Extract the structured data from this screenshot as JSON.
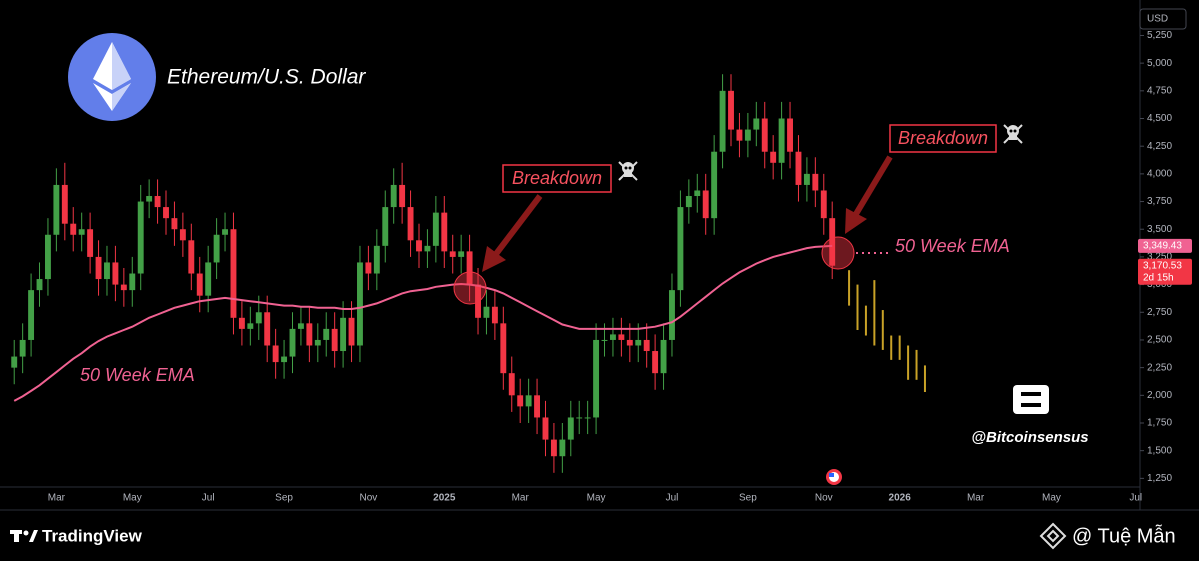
{
  "chart_data": {
    "type": "candlestick",
    "title": "Ethereum/U.S. Dollar",
    "currency": "USD",
    "up_color": "#43a047",
    "down_color": "#f23645",
    "categories": [
      null,
      null,
      null,
      null,
      null,
      "Mar",
      null,
      null,
      null,
      null,
      null,
      null,
      null,
      null,
      "May",
      null,
      null,
      null,
      null,
      null,
      null,
      null,
      null,
      "Jul",
      null,
      null,
      null,
      null,
      null,
      null,
      null,
      null,
      "Sep",
      null,
      null,
      null,
      null,
      null,
      null,
      null,
      null,
      null,
      "Nov",
      null,
      null,
      null,
      null,
      null,
      null,
      null,
      null,
      "2025",
      null,
      null,
      null,
      null,
      null,
      null,
      null,
      null,
      "Mar",
      null,
      null,
      null,
      null,
      null,
      null,
      null,
      null,
      "May",
      null,
      null,
      null,
      null,
      null,
      null,
      null,
      null,
      "Jul",
      null,
      null,
      null,
      null,
      null,
      null,
      null,
      null,
      "Sep",
      null,
      null,
      null,
      null,
      null,
      null,
      null,
      null,
      "Nov",
      null,
      null,
      null,
      null,
      null,
      null,
      null,
      null,
      "2026",
      null,
      null,
      null,
      null,
      null,
      null,
      null,
      null,
      "Mar",
      null,
      null,
      null,
      null,
      null,
      null,
      null,
      null,
      "May",
      null,
      null,
      null,
      null,
      null,
      null,
      null,
      null,
      null,
      "Jul"
    ],
    "open": [
      2250,
      2350,
      2500,
      2950,
      3050,
      3450,
      3900,
      3550,
      3450,
      3500,
      3250,
      3050,
      3200,
      3000,
      2950,
      3100,
      3750,
      3800,
      3700,
      3600,
      3500,
      3400,
      3100,
      2900,
      3200,
      3450,
      3500,
      2700,
      2600,
      2650,
      2750,
      2450,
      2300,
      2350,
      2600,
      2650,
      2450,
      2500,
      2600,
      2400,
      2700,
      2450,
      3200,
      3100,
      3350,
      3700,
      3900,
      3700,
      3400,
      3300,
      3350,
      3650,
      3300,
      3250,
      3300,
      3000,
      2700,
      2800,
      2650,
      2200,
      2000,
      1900,
      2000,
      1800,
      1600,
      1450,
      1600,
      1800,
      1800,
      1800,
      2500,
      2500,
      2550,
      2500,
      2450,
      2500,
      2400,
      2200,
      2500,
      2950,
      3700,
      3800,
      3850,
      3600,
      4200,
      4750,
      4400,
      4300,
      4400,
      4500,
      4200,
      4100,
      4500,
      4200,
      3900,
      4000,
      3850,
      3600,
      null,
      null,
      null,
      null,
      null,
      null,
      null,
      null,
      null,
      null,
      null,
      null,
      null,
      null,
      null,
      null,
      null,
      null,
      null,
      null,
      null,
      null,
      null,
      null,
      null,
      null,
      null,
      null,
      null,
      null,
      null,
      null,
      null,
      null,
      null,
      null
    ],
    "high": [
      2500,
      2650,
      3100,
      3200,
      3600,
      4050,
      4100,
      3700,
      3650,
      3650,
      3400,
      3350,
      3350,
      3150,
      3250,
      3900,
      3950,
      3950,
      3850,
      3750,
      3650,
      3550,
      3250,
      3350,
      3600,
      3650,
      3650,
      2850,
      2800,
      2900,
      2900,
      2600,
      2500,
      2750,
      2800,
      2800,
      2650,
      2750,
      2750,
      2850,
      2850,
      3350,
      3350,
      3500,
      3850,
      4050,
      4100,
      3850,
      3550,
      3500,
      3800,
      3800,
      3450,
      3450,
      3450,
      3150,
      2950,
      2950,
      2800,
      2350,
      2150,
      2150,
      2150,
      1950,
      1750,
      1750,
      1950,
      1950,
      1950,
      2650,
      2650,
      2700,
      2700,
      2650,
      2650,
      2650,
      2550,
      2650,
      3100,
      3850,
      3950,
      4000,
      4000,
      4350,
      4900,
      4900,
      4550,
      4550,
      4650,
      4650,
      4350,
      4650,
      4650,
      4350,
      4150,
      4150,
      4000,
      3750,
      null,
      null,
      null,
      null,
      null,
      null,
      null,
      null,
      null,
      null,
      null,
      null,
      null,
      null,
      null,
      null,
      null,
      null,
      null,
      null,
      null,
      null,
      null,
      null,
      null,
      null,
      null,
      null,
      null,
      null,
      null,
      null,
      null,
      null,
      null,
      null
    ],
    "low": [
      2100,
      2200,
      2350,
      2800,
      2900,
      3300,
      3400,
      3300,
      3300,
      3100,
      2900,
      2900,
      2850,
      2800,
      2800,
      2950,
      3600,
      3550,
      3450,
      3350,
      3250,
      2950,
      2750,
      2750,
      3050,
      3300,
      2550,
      2450,
      2450,
      2500,
      2300,
      2150,
      2150,
      2200,
      2450,
      2300,
      2300,
      2350,
      2250,
      2250,
      2300,
      2300,
      2950,
      2950,
      3200,
      3550,
      3550,
      3250,
      3150,
      3150,
      3200,
      3150,
      3100,
      3100,
      2850,
      2550,
      2550,
      2500,
      2050,
      1850,
      1750,
      1750,
      1650,
      1450,
      1300,
      1300,
      1450,
      1650,
      1650,
      1650,
      2350,
      2350,
      2350,
      2300,
      2300,
      2250,
      2050,
      2050,
      2350,
      2800,
      3550,
      3650,
      3450,
      3450,
      4050,
      4250,
      4150,
      4150,
      4250,
      4050,
      3950,
      3950,
      4050,
      3750,
      3750,
      3700,
      3450,
      3050,
      null,
      null,
      null,
      null,
      null,
      null,
      null,
      null,
      null,
      null,
      null,
      null,
      null,
      null,
      null,
      null,
      null,
      null,
      null,
      null,
      null,
      null,
      null,
      null,
      null,
      null,
      null,
      null,
      null,
      null,
      null,
      null,
      null,
      null,
      null,
      null
    ],
    "close": [
      2350,
      2500,
      2950,
      3050,
      3450,
      3900,
      3550,
      3450,
      3500,
      3250,
      3050,
      3200,
      3000,
      2950,
      3100,
      3750,
      3800,
      3700,
      3600,
      3500,
      3400,
      3100,
      2900,
      3200,
      3450,
      3500,
      2700,
      2600,
      2650,
      2750,
      2450,
      2300,
      2350,
      2600,
      2650,
      2450,
      2500,
      2600,
      2400,
      2700,
      2450,
      3200,
      3100,
      3350,
      3700,
      3900,
      3700,
      3400,
      3300,
      3350,
      3650,
      3300,
      3250,
      3300,
      3000,
      2700,
      2800,
      2650,
      2200,
      2000,
      1900,
      2000,
      1800,
      1600,
      1450,
      1600,
      1800,
      1800,
      1800,
      2500,
      2500,
      2550,
      2500,
      2450,
      2500,
      2400,
      2200,
      2500,
      2950,
      3700,
      3800,
      3850,
      3600,
      4200,
      4750,
      4400,
      4300,
      4400,
      4500,
      4200,
      4100,
      4500,
      4200,
      3900,
      4000,
      3850,
      3600,
      3170.53,
      null,
      null,
      null,
      null,
      null,
      null,
      null,
      null,
      null,
      null,
      null,
      null,
      null,
      null,
      null,
      null,
      null,
      null,
      null,
      null,
      null,
      null,
      null,
      null,
      null,
      null,
      null,
      null,
      null,
      null,
      null,
      null,
      null,
      null,
      null,
      null
    ],
    "ema": {
      "color": "#f06292",
      "values": [
        1950,
        1990,
        2040,
        2090,
        2150,
        2210,
        2270,
        2330,
        2380,
        2440,
        2490,
        2530,
        2560,
        2590,
        2620,
        2660,
        2700,
        2730,
        2760,
        2790,
        2810,
        2830,
        2850,
        2860,
        2870,
        2880,
        2870,
        2860,
        2850,
        2840,
        2830,
        2820,
        2810,
        2810,
        2800,
        2800,
        2790,
        2790,
        2790,
        2780,
        2780,
        2790,
        2810,
        2830,
        2860,
        2890,
        2920,
        2940,
        2950,
        2960,
        2980,
        2990,
        3000,
        3005,
        3000,
        2990,
        2970,
        2950,
        2920,
        2880,
        2840,
        2800,
        2760,
        2720,
        2680,
        2640,
        2620,
        2600,
        2600,
        2600,
        2600,
        2600,
        2600,
        2600,
        2600,
        2610,
        2620,
        2640,
        2660,
        2710,
        2770,
        2830,
        2890,
        2950,
        3010,
        3060,
        3110,
        3150,
        3190,
        3220,
        3250,
        3270,
        3290,
        3310,
        3330,
        3340,
        3345,
        3349.43,
        null,
        null,
        null,
        null,
        null,
        null,
        null,
        null,
        null,
        null,
        null,
        null,
        null,
        null,
        null,
        null,
        null,
        null,
        null,
        null,
        null,
        null,
        null,
        null,
        null,
        null,
        null,
        null,
        null,
        null,
        null,
        null,
        null,
        null,
        null,
        null
      ]
    },
    "projection": {
      "color": "#c9a227",
      "high": [
        null,
        null,
        null,
        null,
        null,
        null,
        null,
        null,
        null,
        null,
        null,
        null,
        null,
        null,
        null,
        null,
        null,
        null,
        null,
        null,
        null,
        null,
        null,
        null,
        null,
        null,
        null,
        null,
        null,
        null,
        null,
        null,
        null,
        null,
        null,
        null,
        null,
        null,
        null,
        null,
        null,
        null,
        null,
        null,
        null,
        null,
        null,
        null,
        null,
        null,
        null,
        null,
        null,
        null,
        null,
        null,
        null,
        null,
        null,
        null,
        null,
        null,
        null,
        null,
        null,
        null,
        null,
        null,
        null,
        null,
        null,
        null,
        null,
        null,
        null,
        null,
        null,
        null,
        null,
        null,
        null,
        null,
        null,
        null,
        null,
        null,
        null,
        null,
        null,
        null,
        null,
        null,
        null,
        null,
        null,
        null,
        null,
        null,
        null,
        3130,
        3000,
        2810,
        3040,
        2770,
        2540,
        2540,
        2450,
        2410,
        2270,
        null,
        null,
        null,
        null,
        null,
        null,
        null,
        null,
        null,
        null,
        null,
        null,
        null,
        null,
        null,
        null,
        null,
        null,
        null,
        null,
        null,
        null,
        null,
        null,
        null
      ],
      "low": [
        null,
        null,
        null,
        null,
        null,
        null,
        null,
        null,
        null,
        null,
        null,
        null,
        null,
        null,
        null,
        null,
        null,
        null,
        null,
        null,
        null,
        null,
        null,
        null,
        null,
        null,
        null,
        null,
        null,
        null,
        null,
        null,
        null,
        null,
        null,
        null,
        null,
        null,
        null,
        null,
        null,
        null,
        null,
        null,
        null,
        null,
        null,
        null,
        null,
        null,
        null,
        null,
        null,
        null,
        null,
        null,
        null,
        null,
        null,
        null,
        null,
        null,
        null,
        null,
        null,
        null,
        null,
        null,
        null,
        null,
        null,
        null,
        null,
        null,
        null,
        null,
        null,
        null,
        null,
        null,
        null,
        null,
        null,
        null,
        null,
        null,
        null,
        null,
        null,
        null,
        null,
        null,
        null,
        null,
        null,
        null,
        null,
        null,
        null,
        2810,
        2590,
        2540,
        2450,
        2410,
        2320,
        2320,
        2140,
        2140,
        2030,
        null,
        null,
        null,
        null,
        null,
        null,
        null,
        null,
        null,
        null,
        null,
        null,
        null,
        null,
        null,
        null,
        null,
        null,
        null,
        null,
        null,
        null,
        null,
        null,
        null
      ]
    },
    "ylim": [
      1190,
      5480
    ],
    "yticks": [
      {
        "value": 1250,
        "label": "1,250"
      },
      {
        "value": 1500,
        "label": "1,500"
      },
      {
        "value": 1750,
        "label": "1,750"
      },
      {
        "value": 2000,
        "label": "2,000"
      },
      {
        "value": 2250,
        "label": "2,250"
      },
      {
        "value": 2500,
        "label": "2,500"
      },
      {
        "value": 2750,
        "label": "2,750"
      },
      {
        "value": 3000,
        "label": "3,000"
      },
      {
        "value": 3250,
        "label": "3,250"
      },
      {
        "value": 3500,
        "label": "3,500"
      },
      {
        "value": 3750,
        "label": "3,750"
      },
      {
        "value": 4000,
        "label": "4,000"
      },
      {
        "value": 4250,
        "label": "4,250"
      },
      {
        "value": 4500,
        "label": "4,500"
      },
      {
        "value": 4750,
        "label": "4,750"
      },
      {
        "value": 5000,
        "label": "5,000"
      },
      {
        "value": 5250,
        "label": "5,250"
      }
    ],
    "grid": false,
    "price_labels": [
      {
        "value": 3349.43,
        "label": "3,349.43",
        "color": "#f06292"
      },
      {
        "value": 3170.53,
        "label": "3,170.53",
        "sub": "2d 15h",
        "color": "#f23645"
      }
    ],
    "annotations": [
      "Breakdown",
      "Breakdown",
      "50 Week EMA",
      "50 Week EMA"
    ],
    "watermark": "@Bitcoinsensus"
  },
  "footer": {
    "brand": "TradingView",
    "credit": "@ Tuệ Mẫn"
  }
}
